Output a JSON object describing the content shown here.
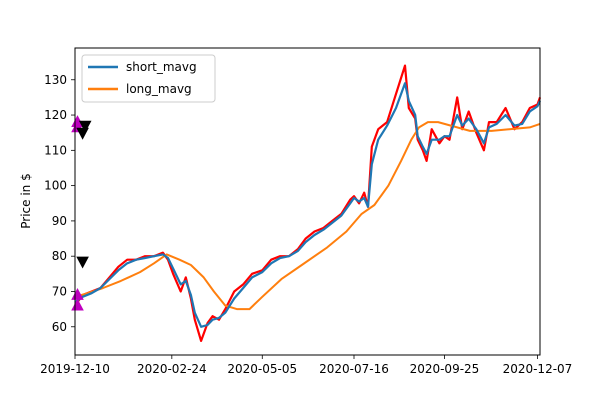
{
  "chart_data": {
    "type": "line",
    "title": "",
    "xlabel": "",
    "ylabel": "Price in $",
    "xlim": [
      "2019-12-10",
      "2020-12-09"
    ],
    "ylim": [
      52,
      139
    ],
    "yticks": [
      60,
      70,
      80,
      90,
      100,
      110,
      120,
      130
    ],
    "xticks": [
      "2019-12-10",
      "2020-02-24",
      "2020-05-05",
      "2020-07-16",
      "2020-09-25",
      "2020-12-07"
    ],
    "legend_position": "upper-left",
    "grid": false,
    "colors": {
      "price": "#ff0000",
      "short_mavg": "#1f77b4",
      "long_mavg": "#ff7f0e",
      "buy": "#bf00bf",
      "sell": "#000000"
    },
    "series": [
      {
        "key": "price",
        "x": [
          "2019-12-10",
          "2019-12-16",
          "2019-12-23",
          "2019-12-30",
          "2020-01-06",
          "2020-01-13",
          "2020-01-20",
          "2020-01-27",
          "2020-02-03",
          "2020-02-10",
          "2020-02-17",
          "2020-02-21",
          "2020-02-25",
          "2020-03-02",
          "2020-03-06",
          "2020-03-10",
          "2020-03-13",
          "2020-03-18",
          "2020-03-23",
          "2020-03-27",
          "2020-04-01",
          "2020-04-06",
          "2020-04-13",
          "2020-04-20",
          "2020-04-27",
          "2020-05-05",
          "2020-05-12",
          "2020-05-19",
          "2020-05-26",
          "2020-06-02",
          "2020-06-08",
          "2020-06-15",
          "2020-06-22",
          "2020-06-29",
          "2020-07-06",
          "2020-07-13",
          "2020-07-16",
          "2020-07-20",
          "2020-07-24",
          "2020-07-27",
          "2020-07-30",
          "2020-08-04",
          "2020-08-11",
          "2020-08-18",
          "2020-08-25",
          "2020-08-28",
          "2020-09-02",
          "2020-09-04",
          "2020-09-08",
          "2020-09-11",
          "2020-09-15",
          "2020-09-21",
          "2020-09-25",
          "2020-09-29",
          "2020-10-05",
          "2020-10-09",
          "2020-10-14",
          "2020-10-20",
          "2020-10-26",
          "2020-10-30",
          "2020-11-05",
          "2020-11-12",
          "2020-11-19",
          "2020-11-25",
          "2020-12-01",
          "2020-12-07",
          "2020-12-09"
        ],
        "values": [
          66,
          69,
          70,
          71,
          74,
          77,
          79,
          79,
          80,
          80,
          81,
          79,
          75,
          70,
          74,
          68,
          62,
          56,
          61,
          63,
          62,
          65,
          70,
          72,
          75,
          76,
          79,
          80,
          80,
          82,
          85,
          87,
          88,
          90,
          92,
          96,
          97,
          95,
          98,
          94,
          111,
          116,
          118,
          126,
          134,
          122,
          119,
          113,
          110,
          107,
          116,
          112,
          114,
          113,
          125,
          116,
          121,
          115,
          110,
          118,
          118,
          122,
          116,
          118,
          122,
          123,
          125
        ]
      },
      {
        "key": "short_mavg",
        "name": "short_mavg",
        "x": [
          "2019-12-10",
          "2019-12-16",
          "2019-12-23",
          "2019-12-30",
          "2020-01-06",
          "2020-01-13",
          "2020-01-20",
          "2020-01-27",
          "2020-02-03",
          "2020-02-10",
          "2020-02-17",
          "2020-02-21",
          "2020-02-25",
          "2020-03-02",
          "2020-03-06",
          "2020-03-10",
          "2020-03-13",
          "2020-03-18",
          "2020-03-23",
          "2020-03-27",
          "2020-04-01",
          "2020-04-06",
          "2020-04-13",
          "2020-04-20",
          "2020-04-27",
          "2020-05-05",
          "2020-05-12",
          "2020-05-19",
          "2020-05-26",
          "2020-06-02",
          "2020-06-08",
          "2020-06-15",
          "2020-06-22",
          "2020-06-29",
          "2020-07-06",
          "2020-07-13",
          "2020-07-16",
          "2020-07-20",
          "2020-07-24",
          "2020-07-27",
          "2020-07-30",
          "2020-08-04",
          "2020-08-11",
          "2020-08-18",
          "2020-08-25",
          "2020-08-28",
          "2020-09-02",
          "2020-09-04",
          "2020-09-08",
          "2020-09-11",
          "2020-09-15",
          "2020-09-21",
          "2020-09-25",
          "2020-09-29",
          "2020-10-05",
          "2020-10-09",
          "2020-10-14",
          "2020-10-20",
          "2020-10-26",
          "2020-10-30",
          "2020-11-05",
          "2020-11-12",
          "2020-11-19",
          "2020-11-25",
          "2020-12-01",
          "2020-12-07",
          "2020-12-09"
        ],
        "values": [
          67,
          68.5,
          69.5,
          71,
          73.5,
          76,
          78,
          79,
          79.5,
          80,
          80.5,
          79.5,
          76.5,
          72,
          73,
          69,
          64,
          60,
          60.5,
          62,
          62.5,
          64,
          68,
          71,
          74,
          75.5,
          78,
          79.5,
          80,
          81.5,
          84,
          86,
          87.5,
          89.5,
          91.5,
          95,
          96.5,
          95.5,
          96.5,
          94,
          106,
          113,
          117,
          122,
          129,
          124,
          120,
          114,
          111,
          109,
          113,
          113,
          114,
          114,
          120,
          117,
          119,
          116,
          112,
          116.5,
          117.5,
          120,
          117,
          117.5,
          121,
          122.5,
          124
        ]
      },
      {
        "key": "long_mavg",
        "name": "long_mavg",
        "x": [
          "2019-12-10",
          "2019-12-20",
          "2020-01-01",
          "2020-01-15",
          "2020-01-30",
          "2020-02-10",
          "2020-02-20",
          "2020-03-01",
          "2020-03-10",
          "2020-03-20",
          "2020-03-28",
          "2020-04-06",
          "2020-04-15",
          "2020-04-25",
          "2020-05-05",
          "2020-05-20",
          "2020-06-05",
          "2020-06-25",
          "2020-07-10",
          "2020-07-22",
          "2020-08-01",
          "2020-08-12",
          "2020-08-22",
          "2020-08-30",
          "2020-09-05",
          "2020-09-12",
          "2020-09-20",
          "2020-09-30",
          "2020-10-15",
          "2020-11-01",
          "2020-11-15",
          "2020-12-01",
          "2020-12-09"
        ],
        "values": [
          68.5,
          69.5,
          71,
          73,
          75.5,
          78,
          80.5,
          79,
          77.5,
          74,
          70,
          66,
          65,
          65,
          68.5,
          73.5,
          77.5,
          82.5,
          87,
          92,
          94.5,
          100,
          107,
          113,
          116.5,
          118,
          118,
          117,
          115.5,
          115.5,
          116,
          116.5,
          117.5
        ]
      }
    ],
    "markers": [
      {
        "type": "buy",
        "shape": "triangle-up",
        "x": "2019-12-12",
        "y": 118
      },
      {
        "type": "buy",
        "shape": "triangle-up",
        "x": "2019-12-12",
        "y": 116.5
      },
      {
        "type": "buy",
        "shape": "triangle-up",
        "x": "2019-12-12",
        "y": 69
      },
      {
        "type": "buy",
        "shape": "triangle-up",
        "x": "2019-12-12",
        "y": 66
      },
      {
        "type": "sell",
        "shape": "triangle-down",
        "x": "2019-12-18",
        "y": 117
      },
      {
        "type": "sell",
        "shape": "triangle-down",
        "x": "2019-12-16",
        "y": 115
      },
      {
        "type": "sell",
        "shape": "triangle-down",
        "x": "2019-12-16",
        "y": 78.5
      }
    ],
    "legend": [
      "short_mavg",
      "long_mavg"
    ]
  }
}
